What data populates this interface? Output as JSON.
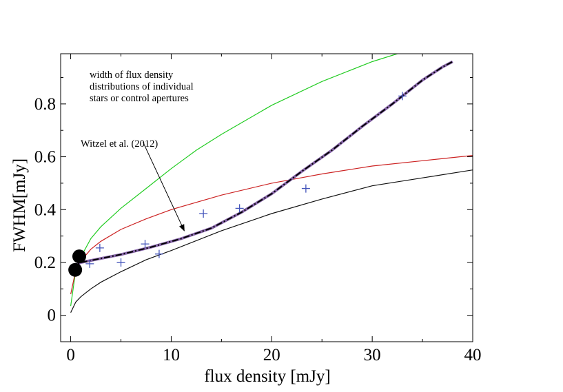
{
  "chart_data": {
    "type": "line",
    "xlabel": "flux density [mJy]",
    "ylabel": "FWHM[mJy]",
    "xlim": [
      -1,
      40
    ],
    "ylim": [
      -0.1,
      0.99
    ],
    "xticks": [
      0,
      10,
      20,
      30,
      40
    ],
    "xtick_labels": [
      "0",
      "10",
      "20",
      "30",
      "40"
    ],
    "yticks": [
      0,
      0.2,
      0.4,
      0.6,
      0.8
    ],
    "ytick_labels": [
      "0",
      "0.2",
      "0.4",
      "0.6",
      "0.8"
    ],
    "grid": false,
    "annotations": {
      "note_lines": [
        "width of flux density",
        "distributions of individual",
        "stars or control apertures"
      ],
      "arrow_label": "Witzel et al. (2012)",
      "arrow_tail": [
        7.2,
        0.655
      ],
      "arrow_head": [
        11.3,
        0.32
      ]
    },
    "series": [
      {
        "style": "line",
        "color": "#22cc22",
        "x": [
          0,
          0.5,
          1,
          2,
          3,
          5,
          7.5,
          10,
          12.5,
          15,
          20,
          25,
          30,
          32.5
        ],
        "y": [
          0.035,
          0.17,
          0.22,
          0.29,
          0.335,
          0.405,
          0.48,
          0.555,
          0.625,
          0.685,
          0.795,
          0.885,
          0.96,
          0.99
        ]
      },
      {
        "style": "line",
        "color": "#cc2222",
        "x": [
          0,
          0.5,
          1,
          2,
          3,
          5,
          7.5,
          10,
          15,
          20,
          25,
          30,
          35,
          40
        ],
        "y": [
          0.08,
          0.17,
          0.205,
          0.25,
          0.28,
          0.325,
          0.365,
          0.4,
          0.455,
          0.5,
          0.535,
          0.565,
          0.585,
          0.605
        ]
      },
      {
        "style": "line",
        "color": "#111111",
        "x": [
          0,
          0.5,
          1,
          2,
          3,
          5,
          7.5,
          10,
          15,
          20,
          25,
          30,
          35,
          40
        ],
        "y": [
          0.01,
          0.05,
          0.07,
          0.1,
          0.125,
          0.165,
          0.21,
          0.245,
          0.32,
          0.385,
          0.44,
          0.49,
          0.52,
          0.55
        ]
      },
      {
        "style": "dashdot",
        "color": "#000000",
        "underlay": "#8866aa",
        "x": [
          0,
          1,
          3,
          5,
          8,
          11,
          14,
          17,
          20,
          23,
          26,
          29,
          32,
          35,
          37,
          38
        ],
        "y": [
          0.18,
          0.2,
          0.215,
          0.23,
          0.258,
          0.29,
          0.33,
          0.39,
          0.46,
          0.545,
          0.625,
          0.715,
          0.8,
          0.89,
          0.94,
          0.96
        ]
      },
      {
        "style": "markers",
        "marker": "plus",
        "color": "#4455bb",
        "x": [
          1.9,
          2.9,
          5.0,
          7.4,
          8.8,
          13.2,
          16.8,
          23.4,
          33.0
        ],
        "y": [
          0.195,
          0.255,
          0.2,
          0.27,
          0.232,
          0.385,
          0.405,
          0.48,
          0.83
        ]
      },
      {
        "style": "markers",
        "marker": "circle",
        "color": "#000000",
        "x": [
          0.45,
          0.85
        ],
        "y": [
          0.172,
          0.223
        ]
      }
    ]
  }
}
